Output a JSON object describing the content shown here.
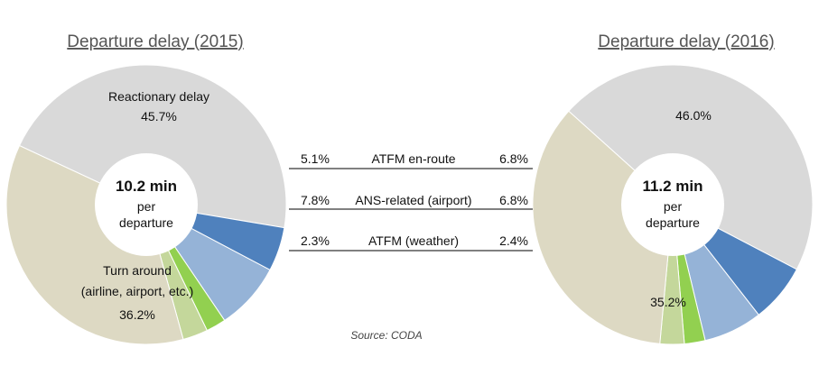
{
  "chart_data": {
    "type": "pie",
    "source": "Source: CODA",
    "colors": {
      "reactionary": "#d9d9d9",
      "atfm_enroute": "#4f81bd",
      "ans_airport": "#95b3d7",
      "atfm_weather": "#92d050",
      "other": "#c4d79b",
      "turn_around": "#ddd9c3"
    },
    "legend_rows": [
      {
        "label": "ATFM en-route",
        "left": "5.1%",
        "right": "6.8%"
      },
      {
        "label": "ANS-related (airport)",
        "left": "7.8%",
        "right": "6.8%"
      },
      {
        "label": "ATFM (weather)",
        "left": "2.3%",
        "right": "2.4%"
      }
    ],
    "charts": [
      {
        "title": "Departure delay (2015)",
        "center_value": "10.2 min",
        "center_text": [
          "per",
          "departure"
        ],
        "reactionary_label": [
          "Reactionary delay",
          "45.7%"
        ],
        "turn_around_label": [
          "Turn around",
          "(airline, airport, etc.)",
          "36.2%"
        ],
        "slices": [
          {
            "key": "reactionary",
            "value": 45.7
          },
          {
            "key": "atfm_enroute",
            "value": 5.1
          },
          {
            "key": "ans_airport",
            "value": 7.8
          },
          {
            "key": "atfm_weather",
            "value": 2.3
          },
          {
            "key": "other",
            "value": 2.9
          },
          {
            "key": "turn_around",
            "value": 36.2
          }
        ]
      },
      {
        "title": "Departure delay (2016)",
        "center_value": "11.2 min",
        "center_text": [
          "per",
          "departure"
        ],
        "reactionary_label": [
          "46.0%"
        ],
        "turn_around_label": [
          "35.2%"
        ],
        "slices": [
          {
            "key": "reactionary",
            "value": 46.0
          },
          {
            "key": "atfm_enroute",
            "value": 6.8
          },
          {
            "key": "ans_airport",
            "value": 6.8
          },
          {
            "key": "atfm_weather",
            "value": 2.4
          },
          {
            "key": "other",
            "value": 2.8
          },
          {
            "key": "turn_around",
            "value": 35.2
          }
        ]
      }
    ]
  }
}
